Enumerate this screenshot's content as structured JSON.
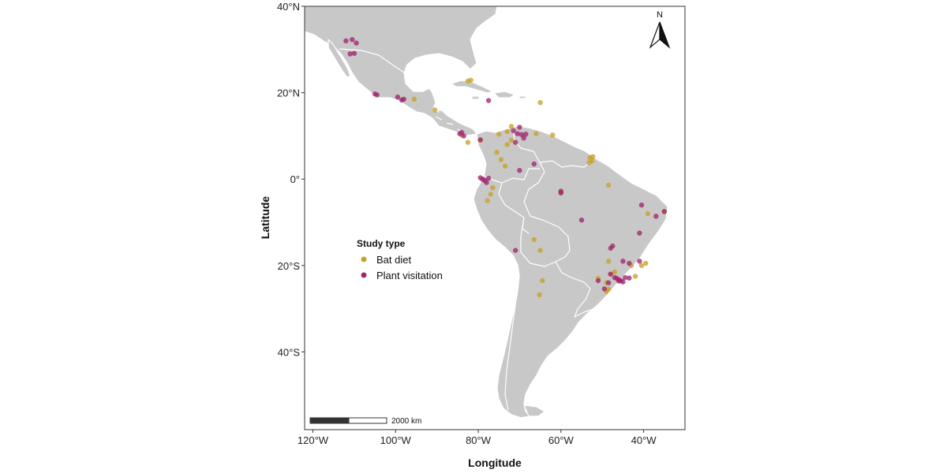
{
  "axes": {
    "x_title": "Longitude",
    "y_title": "Latitude",
    "x_ticks": [
      {
        "value": -120,
        "label": "120°W"
      },
      {
        "value": -100,
        "label": "100°W"
      },
      {
        "value": -80,
        "label": "80°W"
      },
      {
        "value": -60,
        "label": "60°W"
      },
      {
        "value": -40,
        "label": "40°W"
      }
    ],
    "y_ticks": [
      {
        "value": 40,
        "label": "40°N"
      },
      {
        "value": 20,
        "label": "20°N"
      },
      {
        "value": 0,
        "label": "0°"
      },
      {
        "value": -20,
        "label": "20°S"
      },
      {
        "value": -40,
        "label": "40°S"
      }
    ],
    "x_range": [
      -122,
      -30
    ],
    "y_range": [
      -58,
      40
    ]
  },
  "legend": {
    "title": "Study type",
    "position": "center-left",
    "items": [
      {
        "label": "Bat diet",
        "color": "#c9a227"
      },
      {
        "label": "Plant visitation",
        "color": "#a0266e"
      }
    ]
  },
  "scale_bar": {
    "label": "2000 km"
  },
  "north_arrow": {
    "label": "N"
  },
  "colors": {
    "land": "#c8c8c8",
    "borders": "#ffffff",
    "bat_diet": "#c9a227",
    "plant_visitation": "#a0266e"
  },
  "chart_data": {
    "type": "scatter",
    "xlabel": "Longitude",
    "ylabel": "Latitude",
    "xlim": [
      -122,
      -30
    ],
    "ylim": [
      -58,
      40
    ],
    "grid": false,
    "series": [
      {
        "name": "Bat diet",
        "color": "#c9a227",
        "points": [
          [
            -82.5,
            22.7
          ],
          [
            -81.8,
            22.9
          ],
          [
            -90.5,
            16.0
          ],
          [
            -95.5,
            18.5
          ],
          [
            -65.0,
            17.7
          ],
          [
            -84.0,
            10.2
          ],
          [
            -82.5,
            8.5
          ],
          [
            -79.5,
            9.0
          ],
          [
            -75.0,
            10.4
          ],
          [
            -73.0,
            11.0
          ],
          [
            -73.0,
            8.0
          ],
          [
            -72.0,
            9.0
          ],
          [
            -66.0,
            10.5
          ],
          [
            -62.0,
            10.2
          ],
          [
            -72.0,
            12.2
          ],
          [
            -75.5,
            6.2
          ],
          [
            -74.5,
            4.5
          ],
          [
            -73.5,
            3.0
          ],
          [
            -53.0,
            5.0
          ],
          [
            -52.5,
            4.2
          ],
          [
            -53.2,
            3.8
          ],
          [
            -52.3,
            5.2
          ],
          [
            -48.5,
            -1.4
          ],
          [
            -60.0,
            -3.1
          ],
          [
            -76.5,
            -2.0
          ],
          [
            -77.0,
            -3.5
          ],
          [
            -77.8,
            -5.0
          ],
          [
            -66.5,
            -14.0
          ],
          [
            -65.0,
            -16.5
          ],
          [
            -64.5,
            -23.5
          ],
          [
            -65.2,
            -26.8
          ],
          [
            -48.5,
            -19.0
          ],
          [
            -48.0,
            -22.0
          ],
          [
            -47.0,
            -21.5
          ],
          [
            -49.0,
            -24.0
          ],
          [
            -48.5,
            -25.5
          ],
          [
            -43.0,
            -20.0
          ],
          [
            -42.0,
            -22.5
          ],
          [
            -39.5,
            -19.5
          ],
          [
            -40.5,
            -20.0
          ],
          [
            -39.0,
            -8.0
          ],
          [
            -35.0,
            -7.5
          ],
          [
            -51.0,
            -23.0
          ],
          [
            -49.0,
            -26.0
          ]
        ]
      },
      {
        "name": "Plant visitation",
        "color": "#a0266e",
        "points": [
          [
            -112.0,
            32.0
          ],
          [
            -110.5,
            32.3
          ],
          [
            -109.5,
            31.5
          ],
          [
            -111.0,
            29.0
          ],
          [
            -110.0,
            29.1
          ],
          [
            -105.0,
            19.7
          ],
          [
            -104.5,
            19.5
          ],
          [
            -99.5,
            19.0
          ],
          [
            -98.0,
            18.5
          ],
          [
            -98.5,
            18.3
          ],
          [
            -77.5,
            18.2
          ],
          [
            -84.5,
            10.5
          ],
          [
            -83.5,
            10.0
          ],
          [
            -84.0,
            10.8
          ],
          [
            -79.5,
            9.1
          ],
          [
            -71.5,
            11.2
          ],
          [
            -70.5,
            10.5
          ],
          [
            -69.5,
            10.3
          ],
          [
            -68.5,
            10.4
          ],
          [
            -69.0,
            9.5
          ],
          [
            -71.0,
            8.5
          ],
          [
            -70.0,
            12.0
          ],
          [
            -66.5,
            3.5
          ],
          [
            -60.0,
            -2.8
          ],
          [
            -60.0,
            -3.2
          ],
          [
            -79.0,
            0.0
          ],
          [
            -78.5,
            -0.3
          ],
          [
            -78.0,
            -0.8
          ],
          [
            -77.5,
            0.2
          ],
          [
            -79.5,
            0.3
          ],
          [
            -70.0,
            2.0
          ],
          [
            -55.0,
            -9.5
          ],
          [
            -40.5,
            -6.0
          ],
          [
            -37.0,
            -8.6
          ],
          [
            -35.0,
            -7.5
          ],
          [
            -41.0,
            -12.5
          ],
          [
            -48.0,
            -16.0
          ],
          [
            -47.5,
            -15.5
          ],
          [
            -45.0,
            -19.0
          ],
          [
            -43.5,
            -19.5
          ],
          [
            -41.0,
            -19.0
          ],
          [
            -46.5,
            -23.0
          ],
          [
            -46.0,
            -23.3
          ],
          [
            -45.5,
            -23.5
          ],
          [
            -47.0,
            -22.8
          ],
          [
            -44.5,
            -22.8
          ],
          [
            -43.5,
            -22.9
          ],
          [
            -48.0,
            -22.0
          ],
          [
            -49.5,
            -25.4
          ],
          [
            -48.5,
            -24.0
          ],
          [
            -51.0,
            -23.5
          ],
          [
            -71.0,
            -16.5
          ],
          [
            -46.0,
            -23.6
          ],
          [
            -45.0,
            -23.8
          ]
        ]
      }
    ]
  }
}
